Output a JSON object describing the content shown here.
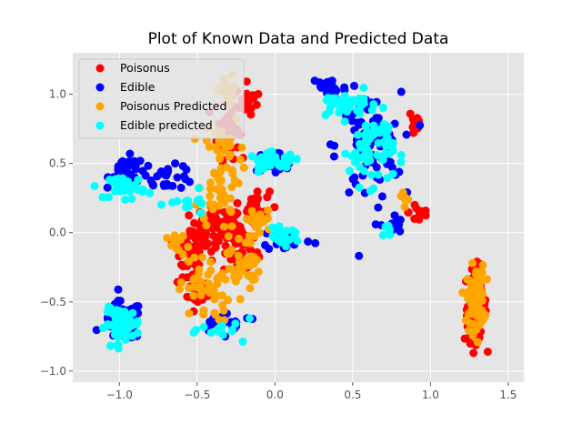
{
  "chart_data": {
    "type": "scatter",
    "title": "Plot of Known Data and Predicted Data",
    "xlabel": "",
    "ylabel": "",
    "xlim": [
      -1.3,
      1.6
    ],
    "ylim": [
      -1.08,
      1.3
    ],
    "x_ticks": [
      -1.0,
      -0.5,
      0.0,
      0.5,
      1.0,
      1.5
    ],
    "x_tick_labels": [
      "−1.0",
      "−0.5",
      "0.0",
      "0.5",
      "1.0",
      "1.5"
    ],
    "y_ticks": [
      -1.0,
      -0.5,
      0.0,
      0.5,
      1.0
    ],
    "y_tick_labels": [
      "−1.0",
      "−0.5",
      "0.0",
      "0.5",
      "1.0"
    ],
    "grid": true,
    "background": "#e5e5e5",
    "legend_position": "top-left",
    "series": [
      {
        "name": "Poisonus",
        "color": "#ff0000",
        "clusters": [
          {
            "center": [
              -0.38,
              0.02
            ],
            "spread": [
              0.12,
              0.12
            ],
            "count": 70
          },
          {
            "center": [
              -0.22,
              -0.12
            ],
            "spread": [
              0.08,
              0.14
            ],
            "count": 45
          },
          {
            "center": [
              -0.55,
              -0.2
            ],
            "spread": [
              0.07,
              0.16
            ],
            "count": 40
          },
          {
            "center": [
              -0.3,
              0.75
            ],
            "spread": [
              0.05,
              0.15
            ],
            "count": 45
          },
          {
            "center": [
              -0.18,
              0.95
            ],
            "spread": [
              0.05,
              0.09
            ],
            "count": 20
          },
          {
            "center": [
              -0.12,
              0.2
            ],
            "spread": [
              0.06,
              0.08
            ],
            "count": 25
          },
          {
            "center": [
              -0.48,
              -0.45
            ],
            "spread": [
              0.06,
              0.05
            ],
            "count": 20
          },
          {
            "center": [
              1.29,
              -0.52
            ],
            "spread": [
              0.05,
              0.19
            ],
            "count": 80
          },
          {
            "center": [
              0.9,
              0.8
            ],
            "spread": [
              0.03,
              0.1
            ],
            "count": 10
          },
          {
            "center": [
              0.93,
              0.15
            ],
            "spread": [
              0.05,
              0.07
            ],
            "count": 12
          }
        ]
      },
      {
        "name": "Edible",
        "color": "#0000ff",
        "clusters": [
          {
            "center": [
              -0.98,
              -0.64
            ],
            "spread": [
              0.09,
              0.1
            ],
            "count": 60
          },
          {
            "center": [
              -0.95,
              0.45
            ],
            "spread": [
              0.08,
              0.07
            ],
            "count": 35
          },
          {
            "center": [
              -0.7,
              0.4
            ],
            "spread": [
              0.14,
              0.06
            ],
            "count": 30
          },
          {
            "center": [
              0.0,
              0.52
            ],
            "spread": [
              0.1,
              0.05
            ],
            "count": 30
          },
          {
            "center": [
              0.6,
              0.62
            ],
            "spread": [
              0.15,
              0.28
            ],
            "count": 80
          },
          {
            "center": [
              0.35,
              1.05
            ],
            "spread": [
              0.08,
              0.06
            ],
            "count": 25
          },
          {
            "center": [
              0.08,
              -0.05
            ],
            "spread": [
              0.12,
              0.06
            ],
            "count": 25
          },
          {
            "center": [
              -0.3,
              -0.65
            ],
            "spread": [
              0.15,
              0.05
            ],
            "count": 25
          },
          {
            "center": [
              0.75,
              0.05
            ],
            "spread": [
              0.05,
              0.06
            ],
            "count": 15
          }
        ]
      },
      {
        "name": "Poisonus Predicted",
        "color": "#ffa500",
        "clusters": [
          {
            "center": [
              -0.35,
              0.45
            ],
            "spread": [
              0.09,
              0.3
            ],
            "count": 70
          },
          {
            "center": [
              -0.45,
              -0.4
            ],
            "spread": [
              0.12,
              0.18
            ],
            "count": 50
          },
          {
            "center": [
              -0.2,
              -0.2
            ],
            "spread": [
              0.07,
              0.18
            ],
            "count": 40
          },
          {
            "center": [
              -0.3,
              1.02
            ],
            "spread": [
              0.04,
              0.08
            ],
            "count": 20
          },
          {
            "center": [
              -0.62,
              -0.1
            ],
            "spread": [
              0.05,
              0.06
            ],
            "count": 12
          },
          {
            "center": [
              -0.1,
              0.08
            ],
            "spread": [
              0.08,
              0.07
            ],
            "count": 20
          },
          {
            "center": [
              1.29,
              -0.48
            ],
            "spread": [
              0.04,
              0.17
            ],
            "count": 85
          },
          {
            "center": [
              0.83,
              0.27
            ],
            "spread": [
              0.04,
              0.05
            ],
            "count": 8
          }
        ]
      },
      {
        "name": "Edible predicted",
        "color": "#00ffff",
        "clusters": [
          {
            "center": [
              -0.98,
              -0.66
            ],
            "spread": [
              0.08,
              0.08
            ],
            "count": 65
          },
          {
            "center": [
              -0.95,
              0.33
            ],
            "spread": [
              0.08,
              0.06
            ],
            "count": 35
          },
          {
            "center": [
              0.0,
              0.52
            ],
            "spread": [
              0.12,
              0.04
            ],
            "count": 40
          },
          {
            "center": [
              0.62,
              0.6
            ],
            "spread": [
              0.1,
              0.18
            ],
            "count": 70
          },
          {
            "center": [
              0.45,
              0.92
            ],
            "spread": [
              0.15,
              0.07
            ],
            "count": 35
          },
          {
            "center": [
              0.05,
              -0.03
            ],
            "spread": [
              0.08,
              0.04
            ],
            "count": 25
          },
          {
            "center": [
              -0.3,
              -0.7
            ],
            "spread": [
              0.12,
              0.05
            ],
            "count": 15
          },
          {
            "center": [
              -0.55,
              0.2
            ],
            "spread": [
              0.1,
              0.06
            ],
            "count": 12
          },
          {
            "center": [
              0.72,
              0.02
            ],
            "spread": [
              0.03,
              0.04
            ],
            "count": 8
          }
        ]
      }
    ]
  }
}
